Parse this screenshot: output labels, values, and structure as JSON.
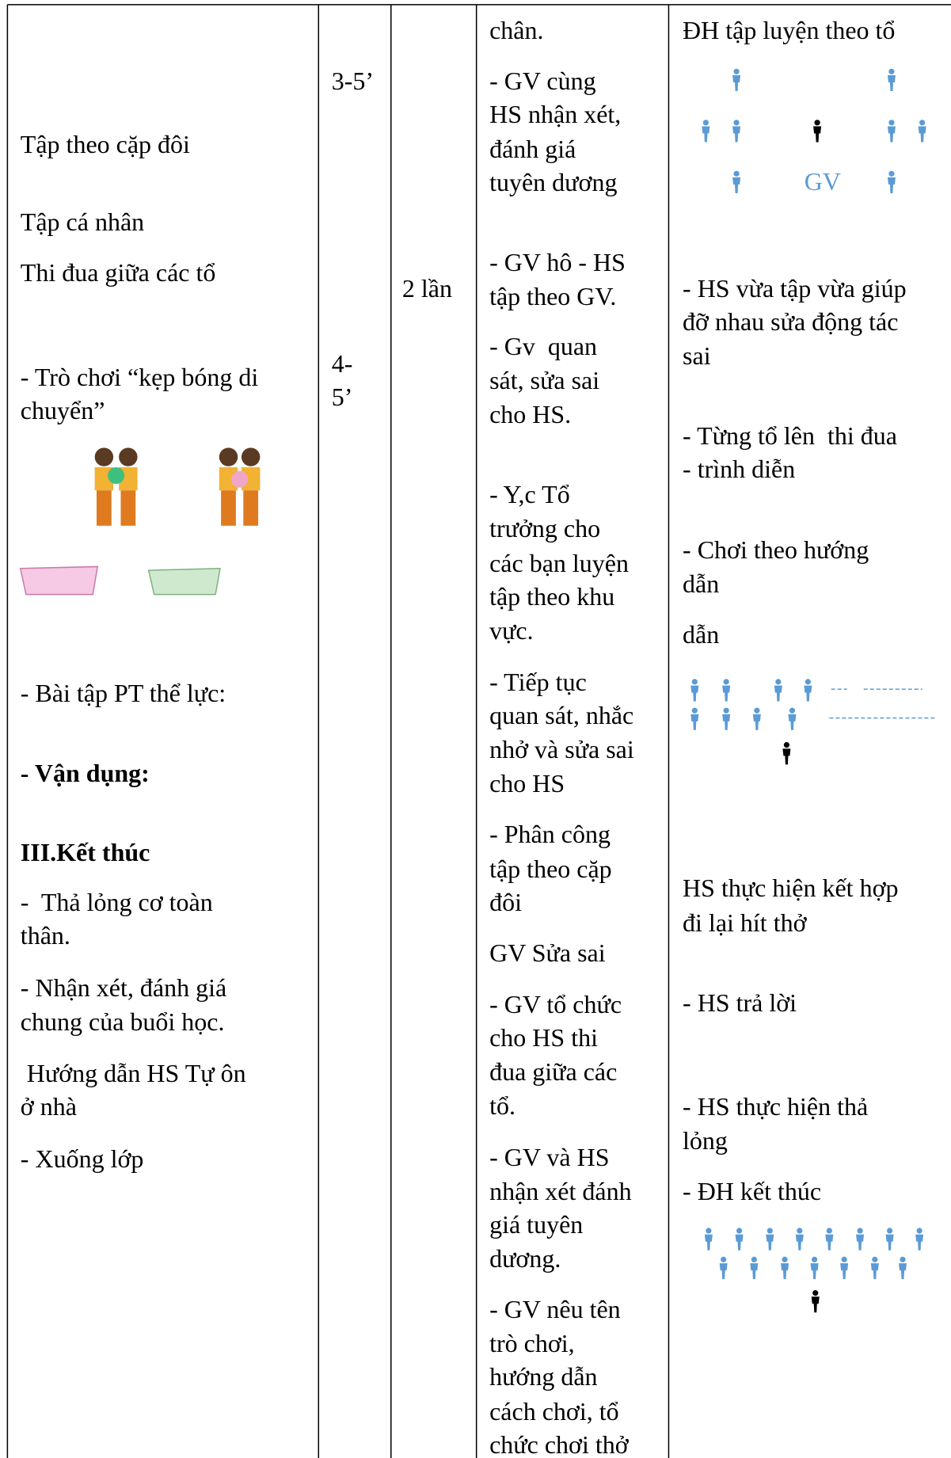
{
  "table": {
    "column_1": [
      "Tập theo cặp đôi",
      "Tập cá nhân",
      "Thi đua giữa các tổ",
      "- Trò chơi “kẹp bóng di",
      "chuyển”",
      "- Bài tập PT thể lực:",
      "- Vận dụng:",
      "III.Kết thúc",
      "-  Thả lỏng cơ toàn",
      "thân.",
      "- Nhận xét, đánh giá",
      "chung của buổi học.",
      " Hướng dẫn HS Tự ôn",
      "ở nhà",
      "- Xuống lớp"
    ],
    "column_2": [
      "3-5’",
      "4-",
      "5’"
    ],
    "column_3": [
      "2 lần"
    ],
    "column_4": [
      "chân.",
      "- GV cùng",
      "HS nhận xét,",
      "đánh giá",
      "tuyên dương",
      "- GV hô - HS",
      "tập theo GV.",
      "- Gv  quan",
      "sát, sửa sai",
      "cho HS.",
      "- Y,c Tổ",
      "trưởng cho",
      "các bạn luyện",
      "tập theo khu",
      "vực.",
      "- Tiếp tục",
      "quan sát, nhắc",
      "nhở và sửa sai",
      "cho HS",
      "- Phân công",
      "tập theo cặp",
      "đôi",
      "GV Sửa sai",
      "- GV tổ chức",
      "cho HS thi",
      "đua giữa các",
      "tổ.",
      "- GV và HS",
      "nhận xét đánh",
      "giá tuyên",
      "dương.",
      "- GV nêu tên",
      "trò chơi,",
      "hướng dẫn",
      "cách chơi, tổ",
      "chức chơi thở"
    ],
    "column_5": [
      "ĐH tập luyện theo tổ",
      "- HS vừa tập vừa giúp",
      "đỡ nhau sửa động tác",
      "sai",
      "- Từng tổ lên  thi đua",
      "- trình diễn",
      "- Chơi theo hướng",
      "dẫn",
      "dẫn",
      "HS thực hiện kết hợp",
      "đi lại hít thở",
      "- HS trả lời",
      "- HS thực hiện thả",
      "lỏng",
      "- ĐH kết thúc"
    ],
    "diagram_label": "GV"
  }
}
